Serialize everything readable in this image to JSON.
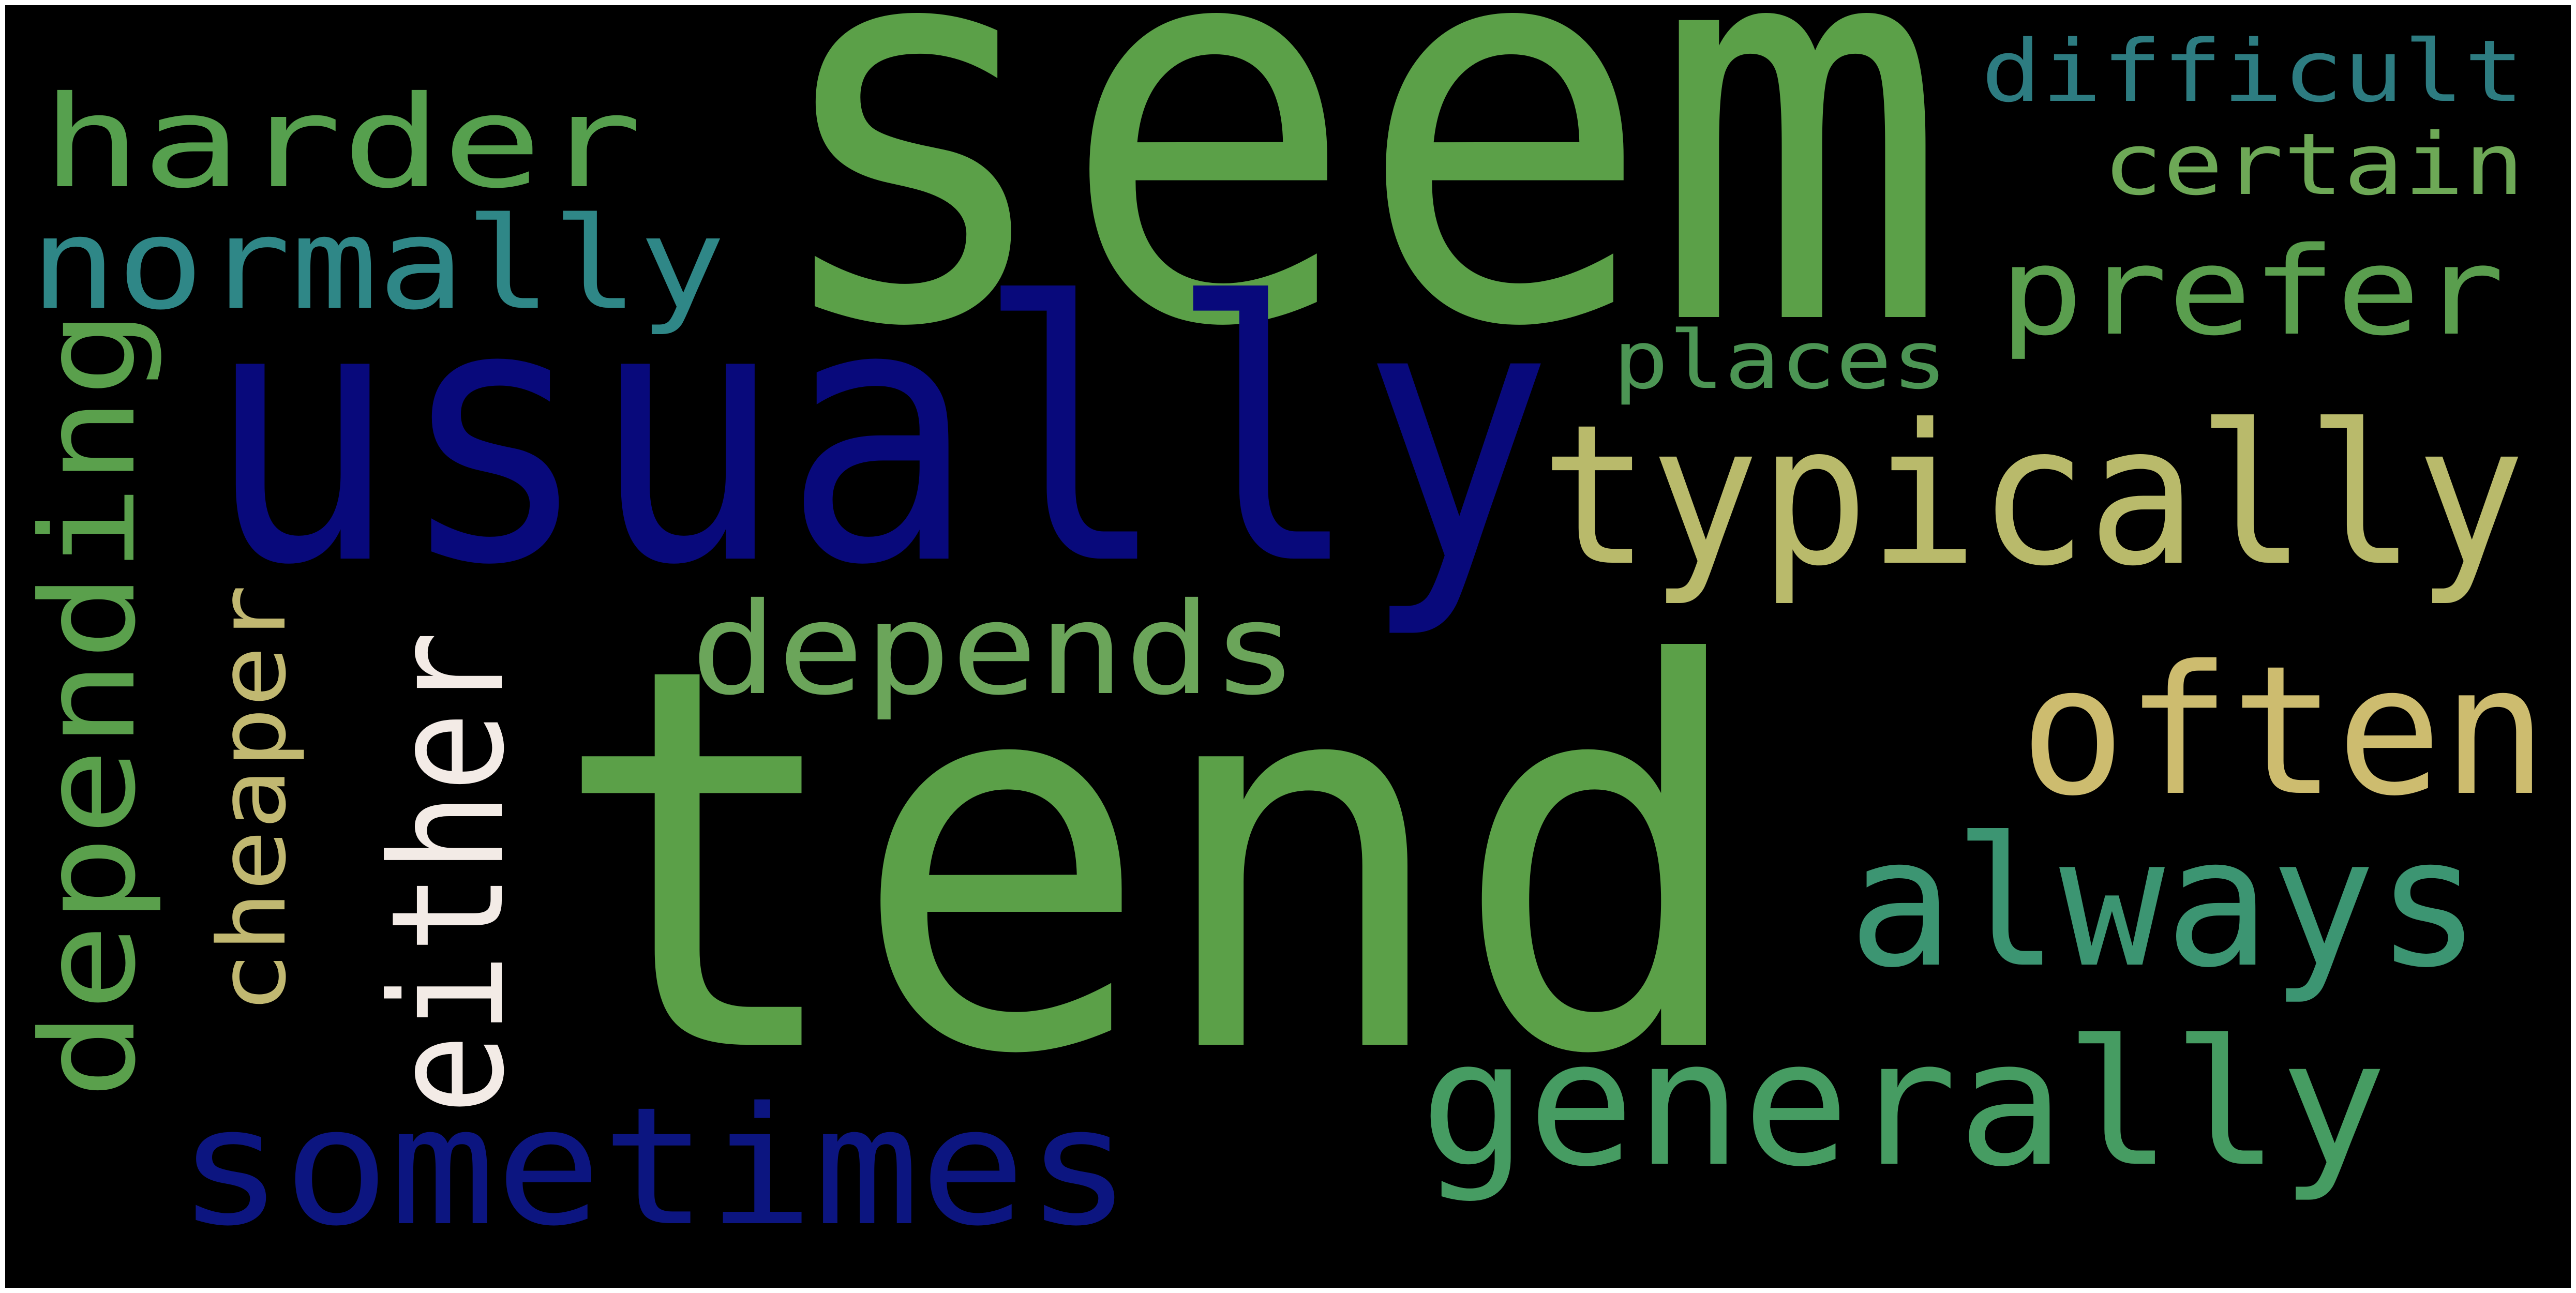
{
  "background": "#000000",
  "words": [
    {
      "text": "seem",
      "color": "#5ba048"
    },
    {
      "text": "tend",
      "color": "#5ba048"
    },
    {
      "text": "usually",
      "color": "#08097b"
    },
    {
      "text": "typically",
      "color": "#b9ba6b"
    },
    {
      "text": "often",
      "color": "#cdbc6f"
    },
    {
      "text": "always",
      "color": "#3c9572"
    },
    {
      "text": "generally",
      "color": "#469c62"
    },
    {
      "text": "sometimes",
      "color": "#0c1580"
    },
    {
      "text": "either",
      "color": "#f3ebe6"
    },
    {
      "text": "depending",
      "color": "#5aa04c"
    },
    {
      "text": "depends",
      "color": "#6ba55a"
    },
    {
      "text": "harder",
      "color": "#56a04e"
    },
    {
      "text": "normally",
      "color": "#2f8787"
    },
    {
      "text": "prefer",
      "color": "#5a9e4e"
    },
    {
      "text": "cheaper",
      "color": "#c1b871"
    },
    {
      "text": "places",
      "color": "#4c9554"
    },
    {
      "text": "difficult",
      "color": "#2d7c81"
    },
    {
      "text": "certain",
      "color": "#6da856"
    }
  ]
}
